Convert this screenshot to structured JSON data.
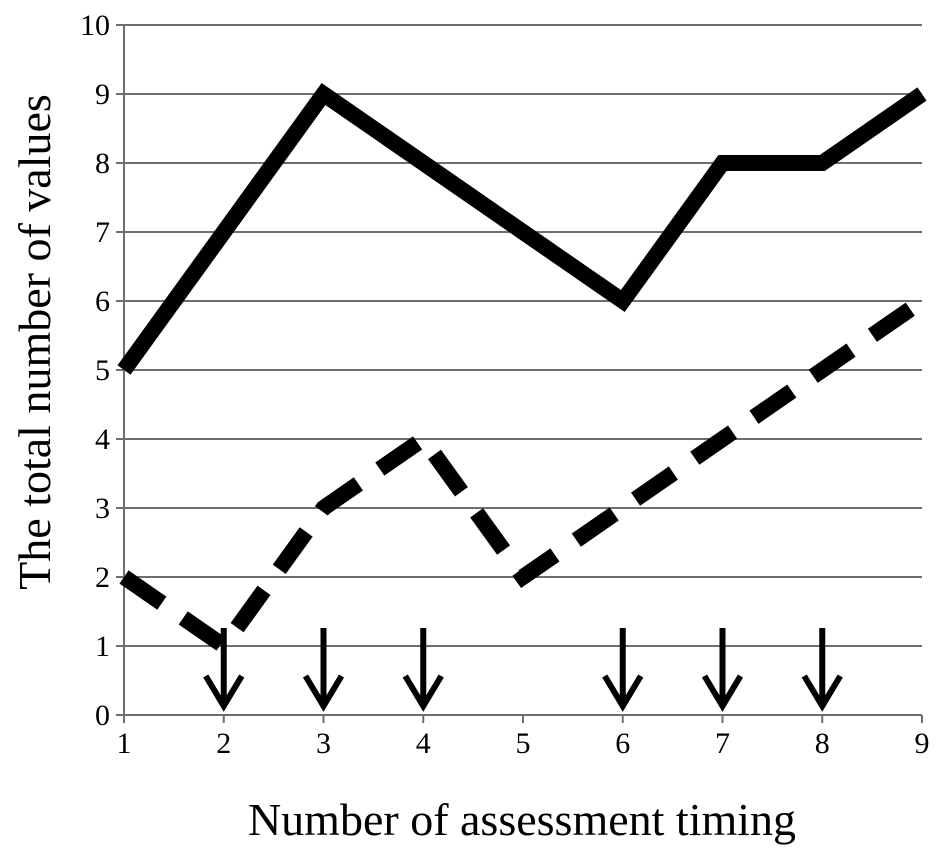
{
  "chart_data": {
    "type": "line",
    "xlabel": "Number of assessment timing",
    "ylabel": "The total number of values",
    "x": [
      1,
      2,
      3,
      4,
      5,
      6,
      7,
      8,
      9
    ],
    "xlim": [
      1,
      9
    ],
    "ylim": [
      0,
      10
    ],
    "xticks": [
      1,
      2,
      3,
      4,
      5,
      6,
      7,
      8,
      9
    ],
    "yticks": [
      0,
      1,
      2,
      3,
      4,
      5,
      6,
      7,
      8,
      9,
      10
    ],
    "grid": "horizontal",
    "legend": "none",
    "series": [
      {
        "style": "solid",
        "color": "#000000",
        "values": [
          5,
          7,
          9,
          8,
          7,
          6,
          8,
          8,
          9
        ]
      },
      {
        "style": "dashed",
        "color": "#000000",
        "values": [
          2,
          1,
          3,
          4,
          2,
          3,
          4,
          5,
          6
        ]
      }
    ],
    "annotations": {
      "arrow_icon": "down-arrow-icon",
      "arrows_at_x": [
        2,
        3,
        4,
        6,
        7,
        8
      ]
    }
  }
}
